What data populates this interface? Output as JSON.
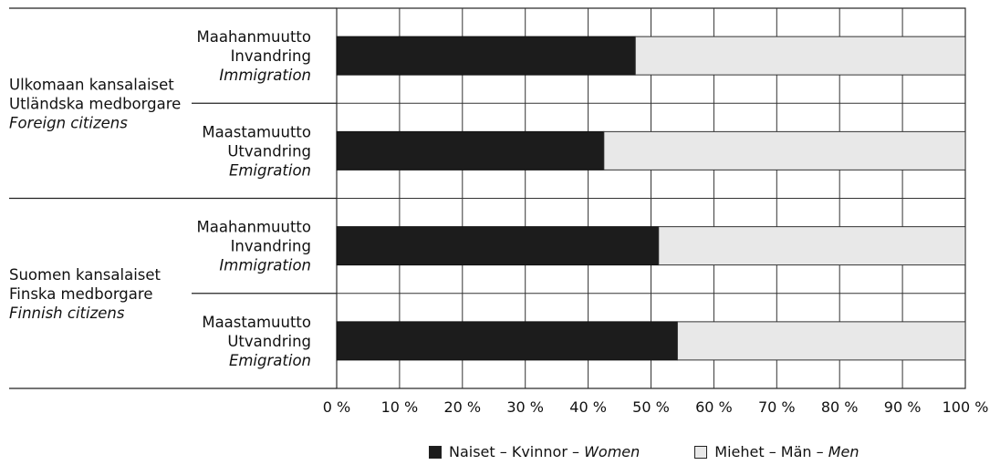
{
  "chart_data": {
    "type": "bar",
    "stacked": true,
    "orientation": "horizontal",
    "groups": [
      {
        "label": [
          "Ulkomaan kansalaiset",
          "Utländska medborgare",
          "Foreign citizens"
        ],
        "rows": [
          {
            "label": [
              "Maahanmuutto",
              "Invandring",
              "Immigration"
            ],
            "women": 47.5,
            "men": 52.5
          },
          {
            "label": [
              "Maastamuutto",
              "Utvandring",
              "Emigration"
            ],
            "women": 42.5,
            "men": 57.5
          }
        ]
      },
      {
        "label": [
          "Suomen kansalaiset",
          "Finska medborgare",
          "Finnish citizens"
        ],
        "rows": [
          {
            "label": [
              "Maahanmuutto",
              "Invandring",
              "Immigration"
            ],
            "women": 51.2,
            "men": 48.8
          },
          {
            "label": [
              "Maastamuutto",
              "Utvandring",
              "Emigration"
            ],
            "women": 54.2,
            "men": 45.8
          }
        ]
      }
    ],
    "series": [
      {
        "name": "Naiset – Kvinnor – Women",
        "key": "women",
        "color": "#1c1c1c"
      },
      {
        "name": "Miehet – Män – Men",
        "key": "men",
        "color": "#e8e8e8"
      }
    ],
    "xticks": [
      "0 %",
      "10 %",
      "20 %",
      "30 %",
      "40 %",
      "50 %",
      "60 %",
      "70 %",
      "80 %",
      "90 %",
      "100 %"
    ],
    "xlim": [
      0,
      100
    ],
    "grid": true,
    "legend": {
      "position": "bottom",
      "items": [
        {
          "prefix": "Naiset – Kvinnor – ",
          "italic": "Women",
          "color": "#1c1c1c"
        },
        {
          "prefix": "Miehet – Män – ",
          "italic": "Men",
          "color": "#e8e8e8"
        }
      ]
    }
  }
}
